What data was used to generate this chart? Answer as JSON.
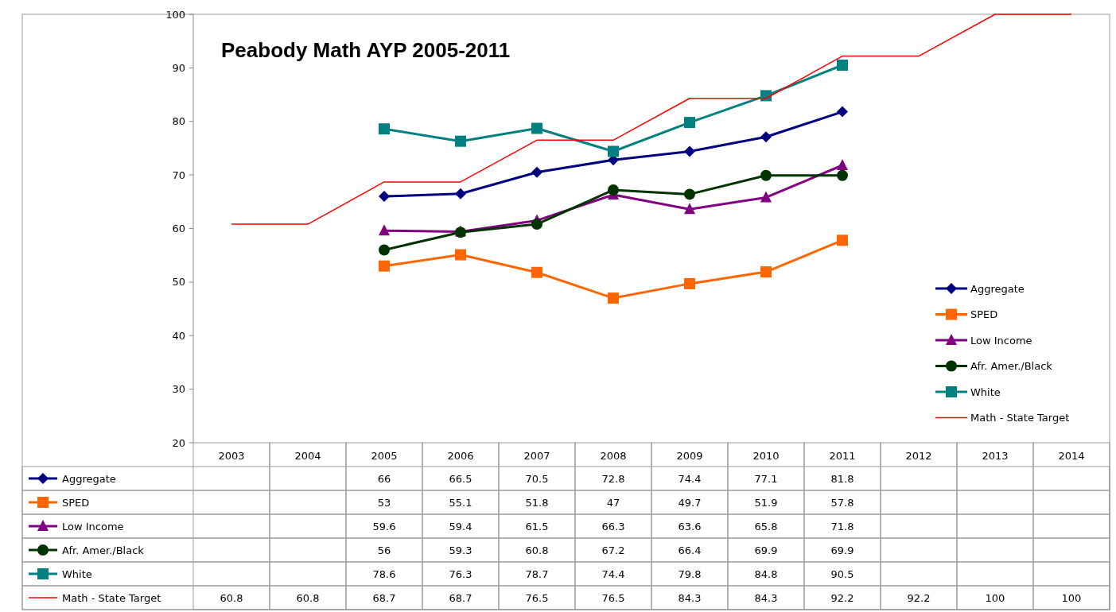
{
  "chart_data": {
    "type": "line",
    "title": "Peabody Math AYP 2005-2011",
    "categories": [
      "2003",
      "2004",
      "2005",
      "2006",
      "2007",
      "2008",
      "2009",
      "2010",
      "2011",
      "2012",
      "2013",
      "2014"
    ],
    "ylim": [
      20,
      100
    ],
    "yticks": [
      20,
      30,
      40,
      50,
      60,
      70,
      80,
      90,
      100
    ],
    "grid": false,
    "legend": "right",
    "data_labels": true,
    "series": [
      {
        "name": "Aggregate",
        "color": "#000080",
        "marker": "diamond",
        "values": [
          null,
          null,
          66,
          66.5,
          70.5,
          72.8,
          74.4,
          77.1,
          81.8,
          null,
          null,
          null
        ]
      },
      {
        "name": "SPED",
        "color": "#ff6600",
        "marker": "square",
        "values": [
          null,
          null,
          53,
          55.1,
          51.8,
          47,
          49.7,
          51.9,
          57.8,
          null,
          null,
          null
        ]
      },
      {
        "name": "Low Income",
        "color": "#800080",
        "marker": "triangle",
        "values": [
          null,
          null,
          59.6,
          59.4,
          61.5,
          66.3,
          63.6,
          65.8,
          71.8,
          null,
          null,
          null
        ]
      },
      {
        "name": "Afr. Amer./Black",
        "color": "#003300",
        "marker": "circle",
        "values": [
          null,
          null,
          56,
          59.3,
          60.8,
          67.2,
          66.4,
          69.9,
          69.9,
          null,
          null,
          null
        ]
      },
      {
        "name": "White",
        "color": "#008080",
        "marker": "square",
        "values": [
          null,
          null,
          78.6,
          76.3,
          78.7,
          74.4,
          79.8,
          84.8,
          90.5,
          null,
          null,
          null
        ]
      },
      {
        "name": "Math - State Target",
        "color": "#ff0000",
        "marker": "none",
        "values": [
          60.8,
          60.8,
          68.7,
          68.7,
          76.5,
          76.5,
          84.3,
          84.3,
          92.2,
          92.2,
          100,
          100
        ]
      }
    ]
  }
}
